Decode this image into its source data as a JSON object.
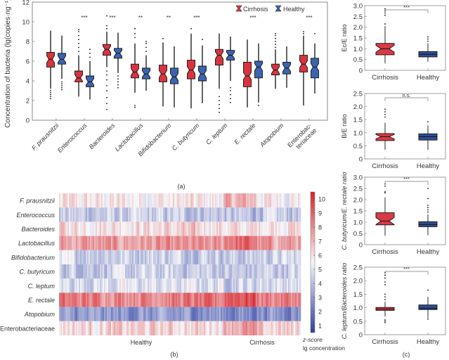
{
  "colors": {
    "cirrhosis": "#d9343e",
    "healthy": "#3b63b0",
    "cirrhosis_small": "#d93a44",
    "healthy_small": "#2f4f95",
    "heat_low": "#2c3fa3",
    "heat_mid": "#f6f6f8",
    "heat_high": "#d6232a"
  },
  "chart_data": [
    {
      "id": "a",
      "panel_label": "(a)",
      "type": "box",
      "title": "",
      "xlabel": "",
      "ylabel": "Concentration of bacteria (lg(copies·ng⁻¹))",
      "ylim": [
        0,
        12
      ],
      "yticks": [
        0,
        2,
        4,
        6,
        8,
        10,
        12
      ],
      "legend": {
        "placement": "top-right",
        "entries": [
          "Cirrhosis",
          "Healthy"
        ]
      },
      "categories": [
        "F. prausnitzii",
        "Enterococcus",
        "Bacteroides",
        "Lactobacillus",
        "Bifidobacterium",
        "C. butyricum",
        "C. leptum",
        "E. rectale",
        "Atopobium",
        "Enterobac-\nteriaceae"
      ],
      "significance": [
        "",
        "***",
        "***",
        "**",
        "**",
        "***",
        "",
        "***",
        "",
        "***"
      ],
      "series": [
        {
          "name": "Cirrhosis",
          "boxes": [
            {
              "whislo": 3.2,
              "q1": 5.4,
              "med": 6.2,
              "q3": 6.9,
              "whishi": 9.1,
              "fliers": [
                2.2,
                2.4,
                2.6,
                2.8,
                3.0
              ]
            },
            {
              "whislo": 2.4,
              "q1": 3.9,
              "med": 4.3,
              "q3": 5.0,
              "whishi": 6.6,
              "fliers": [
                7.0,
                7.4,
                7.8,
                8.2,
                8.6,
                9.0,
                9.2
              ]
            },
            {
              "whislo": 5.4,
              "q1": 6.6,
              "med": 7.2,
              "q3": 7.7,
              "whishi": 9.0,
              "fliers": [
                1.1,
                1.7,
                2.3,
                3.0,
                3.5,
                4.1,
                4.6,
                5.0,
                9.3,
                9.6,
                10.6
              ]
            },
            {
              "whislo": 2.8,
              "q1": 4.3,
              "med": 4.9,
              "q3": 5.7,
              "whishi": 7.8,
              "fliers": [
                1.3,
                1.5,
                8.4,
                8.8,
                9.3
              ]
            },
            {
              "whislo": 1.4,
              "q1": 3.9,
              "med": 4.7,
              "q3": 5.6,
              "whishi": 7.9,
              "fliers": [
                8.3
              ]
            },
            {
              "whislo": 1.2,
              "q1": 4.2,
              "med": 5.1,
              "q3": 6.1,
              "whishi": 8.8,
              "fliers": [
                9.3
              ]
            },
            {
              "whislo": 3.2,
              "q1": 5.6,
              "med": 6.6,
              "q3": 7.2,
              "whishi": 8.8,
              "fliers": [
                0.8,
                1.2,
                1.6,
                2.0,
                2.4
              ]
            },
            {
              "whislo": 1.3,
              "q1": 3.4,
              "med": 4.5,
              "q3": 5.9,
              "whishi": 8.2,
              "fliers": []
            },
            {
              "whislo": 3.2,
              "q1": 4.6,
              "med": 5.1,
              "q3": 5.7,
              "whishi": 7.2,
              "fliers": [
                7.4,
                7.7,
                8.0,
                8.3,
                8.6,
                8.8
              ]
            },
            {
              "whislo": 1.5,
              "q1": 4.9,
              "med": 5.7,
              "q3": 6.6,
              "whishi": 8.6,
              "fliers": [
                8.8,
                9.0
              ]
            }
          ]
        },
        {
          "name": "Healthy",
          "boxes": [
            {
              "whislo": 4.2,
              "q1": 5.7,
              "med": 6.2,
              "q3": 6.8,
              "whishi": 8.6,
              "fliers": [
                3.1,
                3.3,
                3.5,
                3.7,
                3.9
              ]
            },
            {
              "whislo": 2.1,
              "q1": 3.4,
              "med": 3.9,
              "q3": 4.5,
              "whishi": 6.0,
              "fliers": [
                6.4,
                6.8,
                7.2
              ]
            },
            {
              "whislo": 4.8,
              "q1": 6.3,
              "med": 6.8,
              "q3": 7.3,
              "whishi": 8.9,
              "fliers": [
                3.3,
                3.6,
                3.9,
                4.2,
                4.5
              ]
            },
            {
              "whislo": 3.0,
              "q1": 4.2,
              "med": 4.7,
              "q3": 5.3,
              "whishi": 6.6,
              "fliers": [
                7.0,
                7.4,
                7.8,
                8.0
              ]
            },
            {
              "whislo": 1.3,
              "q1": 3.7,
              "med": 4.4,
              "q3": 5.3,
              "whishi": 7.5,
              "fliers": []
            },
            {
              "whislo": 1.8,
              "q1": 4.0,
              "med": 4.7,
              "q3": 5.5,
              "whishi": 7.6,
              "fliers": [
                1.8,
                8.2
              ]
            },
            {
              "whislo": 4.0,
              "q1": 6.1,
              "med": 6.6,
              "q3": 7.1,
              "whishi": 8.5,
              "fliers": [
                1.8,
                2.2,
                2.6,
                3.0,
                3.3
              ]
            },
            {
              "whislo": 1.8,
              "q1": 4.3,
              "med": 5.4,
              "q3": 6.0,
              "whishi": 7.8,
              "fliers": [
                1.5
              ]
            },
            {
              "whislo": 3.3,
              "q1": 4.7,
              "med": 5.3,
              "q3": 5.9,
              "whishi": 7.5,
              "fliers": []
            },
            {
              "whislo": 2.7,
              "q1": 4.3,
              "med": 5.4,
              "q3": 6.3,
              "whishi": 7.8,
              "fliers": [
                8.8
              ]
            }
          ]
        }
      ]
    },
    {
      "id": "b",
      "panel_label": "(b)",
      "type": "heatmap",
      "rows": [
        "F. prausnitzii",
        "Enterococcus",
        "Bacteroides",
        "Lactobacillus",
        "Bifidobacterium",
        "C. butyricum",
        "C. leptum",
        "E. rectale",
        "Atopobium",
        "Enterobacteriaceae"
      ],
      "groups": [
        {
          "name": "Healthy",
          "fraction": 0.68
        },
        {
          "name": "Cirrhosis",
          "fraction": 0.32
        }
      ],
      "row_mean_lg": [
        5.8,
        4.3,
        6.2,
        7.5,
        4.6,
        4.4,
        4.9,
        8.3,
        2.9,
        6.3
      ],
      "colorbar": {
        "range": [
          0.5,
          10.5
        ],
        "ticks": [
          1,
          2,
          3,
          4,
          5,
          6,
          7,
          8,
          9,
          10
        ],
        "label_line1": "z-score",
        "label_line2": "lg concentration"
      }
    },
    {
      "id": "c1",
      "type": "box",
      "ylabel": "Ec/E ratio",
      "ylim": [
        0,
        3.0
      ],
      "yticks": [
        "0",
        "0.5",
        "1.0",
        "1.5",
        "2.0",
        "2.5",
        "3.0"
      ],
      "categories": [
        "Cirrhosis",
        "Healthy"
      ],
      "significance": "***",
      "boxes": [
        {
          "whislo": 0.32,
          "q1": 0.72,
          "med": 1.0,
          "q3": 1.25,
          "whishi": 2.05,
          "fliers": [
            2.15,
            2.55,
            2.65,
            2.75,
            2.85
          ]
        },
        {
          "whislo": 0.4,
          "q1": 0.62,
          "med": 0.74,
          "q3": 0.87,
          "whishi": 1.25,
          "fliers": [
            1.35,
            1.45,
            1.55
          ]
        }
      ]
    },
    {
      "id": "c2",
      "type": "box",
      "ylabel": "B/E ratio",
      "ylim": [
        0,
        2.5
      ],
      "yticks": [
        "0",
        "0.5",
        "1.0",
        "1.5",
        "2.0",
        "2.5"
      ],
      "categories": [
        "Cirrhosis",
        "Healthy"
      ],
      "significance": "n.s.",
      "boxes": [
        {
          "whislo": 0.35,
          "q1": 0.7,
          "med": 0.85,
          "q3": 0.97,
          "whishi": 1.38,
          "fliers": [
            1.6,
            1.7,
            1.8,
            1.9
          ]
        },
        {
          "whislo": 0.35,
          "q1": 0.72,
          "med": 0.85,
          "q3": 0.96,
          "whishi": 1.28,
          "fliers": [
            1.42
          ]
        }
      ]
    },
    {
      "id": "c3",
      "type": "box",
      "ylabel": "C. butyricum/E. rectale ratio",
      "ylim": [
        0,
        3.0
      ],
      "yticks": [
        "0",
        "0.5",
        "1.0",
        "1.5",
        "2.0",
        "2.5",
        "3.0"
      ],
      "categories": [
        "Cirrhosis",
        "Healthy"
      ],
      "significance": "***",
      "boxes": [
        {
          "whislo": 0.4,
          "q1": 0.88,
          "med": 1.05,
          "q3": 1.42,
          "whishi": 2.1,
          "fliers": [
            2.3,
            2.35,
            2.6,
            2.7
          ]
        },
        {
          "whislo": 0.42,
          "q1": 0.8,
          "med": 0.9,
          "q3": 1.02,
          "whishi": 1.35,
          "fliers": [
            1.45,
            1.55,
            1.65,
            1.75,
            2.05,
            2.5
          ]
        }
      ]
    },
    {
      "id": "c4",
      "type": "box",
      "panel_label": "(c)",
      "ylabel": "C. leptum/Bacteroides ratio",
      "ylim": [
        0,
        2.5
      ],
      "yticks": [
        "0",
        "0.5",
        "1.0",
        "1.5",
        "2.0",
        "2.5"
      ],
      "categories": [
        "Cirrhosis",
        "Healthy"
      ],
      "significance": "***",
      "boxes": [
        {
          "whislo": 0.68,
          "q1": 0.9,
          "med": 0.95,
          "q3": 1.01,
          "whishi": 1.22,
          "fliers": [
            0.45,
            0.5,
            0.55,
            1.3,
            1.4,
            1.5,
            1.85,
            1.95,
            2.1,
            2.2,
            2.3
          ]
        },
        {
          "whislo": 0.62,
          "q1": 0.93,
          "med": 0.98,
          "q3": 1.1,
          "whishi": 1.4,
          "fliers": [
            0.58,
            1.65
          ]
        }
      ]
    }
  ]
}
